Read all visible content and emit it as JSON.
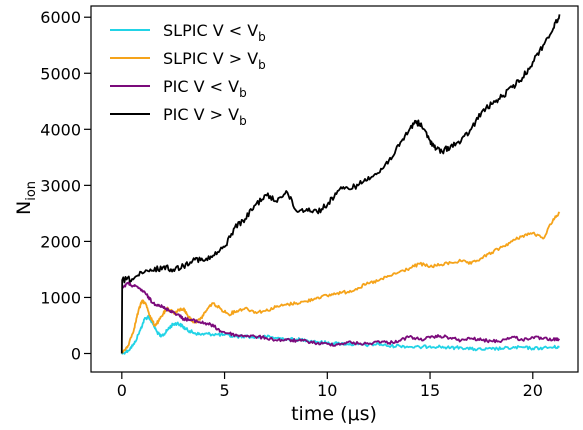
{
  "chart_data": {
    "type": "line",
    "title": "",
    "xlabel": "time (μs)",
    "ylabel": {
      "base": "N",
      "sub": "ion"
    },
    "xlim": [
      -1.5,
      22.2
    ],
    "ylim": [
      -330,
      6200
    ],
    "xticks": [
      {
        "value": 0,
        "label": "0"
      },
      {
        "value": 5,
        "label": "5"
      },
      {
        "value": 10,
        "label": "10"
      },
      {
        "value": 15,
        "label": "15"
      },
      {
        "value": 20,
        "label": "20"
      }
    ],
    "yticks": [
      {
        "value": 0,
        "label": "0"
      },
      {
        "value": 1000,
        "label": "1000"
      },
      {
        "value": 2000,
        "label": "2000"
      },
      {
        "value": 3000,
        "label": "3000"
      },
      {
        "value": 4000,
        "label": "4000"
      },
      {
        "value": 5000,
        "label": "5000"
      },
      {
        "value": 6000,
        "label": "6000"
      }
    ],
    "grid": false,
    "legend_position": "top-left",
    "series": [
      {
        "name": "SLPIC V < Vb",
        "legend_base": "SLPIC V < V",
        "legend_sub": "b",
        "color": "#22d3e6",
        "x": [
          0,
          0.3,
          0.6,
          0.9,
          1.1,
          1.3,
          1.5,
          1.7,
          1.9,
          2.1,
          2.3,
          2.5,
          2.7,
          2.9,
          3.1,
          3.3,
          3.5,
          3.8,
          4.2,
          4.6,
          5.0,
          5.5,
          6.0,
          6.5,
          7.0,
          7.5,
          8.0,
          8.5,
          9.0,
          9.5,
          10.0,
          10.5,
          11.0,
          11.5,
          12.0,
          12.5,
          13.0,
          13.5,
          14.0,
          14.5,
          15.0,
          15.5,
          16.0,
          16.5,
          17.0,
          17.5,
          18.0,
          18.5,
          19.0,
          19.5,
          20.0,
          20.5,
          21.0,
          21.3
        ],
        "y": [
          0,
          50,
          170,
          420,
          610,
          660,
          540,
          390,
          300,
          360,
          460,
          520,
          540,
          500,
          440,
          400,
          370,
          340,
          350,
          340,
          330,
          300,
          310,
          290,
          300,
          280,
          260,
          250,
          240,
          210,
          190,
          180,
          170,
          160,
          150,
          170,
          130,
          140,
          120,
          110,
          130,
          120,
          100,
          110,
          80,
          70,
          80,
          90,
          100,
          110,
          90,
          100,
          110,
          120
        ]
      },
      {
        "name": "SLPIC V > Vb",
        "legend_base": "SLPIC V > V",
        "legend_sub": "b",
        "color": "#f5a31a",
        "x": [
          0,
          0.3,
          0.6,
          0.8,
          1.0,
          1.2,
          1.4,
          1.6,
          1.8,
          2.0,
          2.2,
          2.4,
          2.6,
          2.8,
          3.0,
          3.2,
          3.5,
          3.8,
          4.1,
          4.4,
          4.8,
          5.2,
          5.6,
          6.0,
          6.5,
          7.0,
          7.5,
          8.0,
          8.5,
          9.0,
          9.5,
          10.0,
          10.5,
          11.0,
          11.5,
          12.0,
          12.5,
          13.0,
          13.5,
          14.0,
          14.5,
          15.0,
          15.5,
          16.0,
          16.5,
          17.0,
          17.5,
          18.0,
          18.5,
          19.0,
          19.5,
          20.0,
          20.5,
          21.0,
          21.3
        ],
        "y": [
          0,
          140,
          450,
          750,
          950,
          860,
          640,
          500,
          580,
          700,
          800,
          760,
          720,
          780,
          800,
          680,
          560,
          600,
          760,
          900,
          800,
          700,
          760,
          810,
          740,
          760,
          830,
          870,
          900,
          930,
          1000,
          1030,
          1080,
          1100,
          1170,
          1250,
          1300,
          1380,
          1450,
          1520,
          1600,
          1550,
          1580,
          1620,
          1650,
          1600,
          1700,
          1800,
          1900,
          2000,
          2100,
          2150,
          2050,
          2400,
          2500
        ]
      },
      {
        "name": "PIC V < Vb",
        "legend_base": "PIC V < V",
        "legend_sub": "b",
        "color": "#7b0a7b",
        "x": [
          0,
          0.3,
          0.6,
          0.9,
          1.2,
          1.5,
          1.8,
          2.1,
          2.4,
          2.7,
          3.0,
          3.3,
          3.6,
          3.9,
          4.2,
          4.5,
          4.8,
          5.2,
          5.6,
          6.0,
          6.5,
          7.0,
          7.5,
          8.0,
          8.5,
          9.0,
          9.5,
          10.0,
          10.5,
          11.0,
          11.5,
          12.0,
          12.5,
          13.0,
          13.5,
          14.0,
          14.5,
          15.0,
          15.5,
          16.0,
          16.5,
          17.0,
          17.5,
          18.0,
          18.5,
          19.0,
          19.5,
          20.0,
          20.5,
          21.0,
          21.3
        ],
        "y": [
          1180,
          1250,
          1200,
          1150,
          1050,
          900,
          870,
          800,
          760,
          700,
          620,
          600,
          580,
          550,
          530,
          480,
          400,
          360,
          320,
          320,
          300,
          280,
          240,
          240,
          230,
          220,
          180,
          170,
          160,
          200,
          180,
          170,
          220,
          190,
          230,
          300,
          250,
          280,
          310,
          280,
          230,
          270,
          240,
          220,
          230,
          300,
          240,
          290,
          260,
          250,
          240
        ]
      },
      {
        "name": "PIC V > Vb",
        "legend_base": "PIC V > V",
        "legend_sub": "b",
        "color": "#000000",
        "x": [
          0,
          0.02,
          0.5,
          1.0,
          1.5,
          2.0,
          2.5,
          3.0,
          3.5,
          4.0,
          4.5,
          5.0,
          5.5,
          6.0,
          6.5,
          7.0,
          7.5,
          8.0,
          8.5,
          9.0,
          9.5,
          10.0,
          10.5,
          11.0,
          11.5,
          12.0,
          12.5,
          13.0,
          13.5,
          14.0,
          14.3,
          14.6,
          15.0,
          15.3,
          15.6,
          16.0,
          16.5,
          17.0,
          17.5,
          18.0,
          18.5,
          19.0,
          19.5,
          20.0,
          20.5,
          21.0,
          21.3
        ],
        "y": [
          0,
          1310,
          1330,
          1430,
          1480,
          1540,
          1500,
          1560,
          1700,
          1650,
          1750,
          1900,
          2250,
          2400,
          2650,
          2830,
          2720,
          2900,
          2540,
          2580,
          2530,
          2650,
          2900,
          2950,
          3000,
          3150,
          3220,
          3450,
          3700,
          4000,
          4150,
          4050,
          3800,
          3650,
          3600,
          3700,
          3780,
          4000,
          4300,
          4450,
          4580,
          4750,
          4920,
          5200,
          5500,
          5800,
          6050
        ]
      }
    ]
  }
}
